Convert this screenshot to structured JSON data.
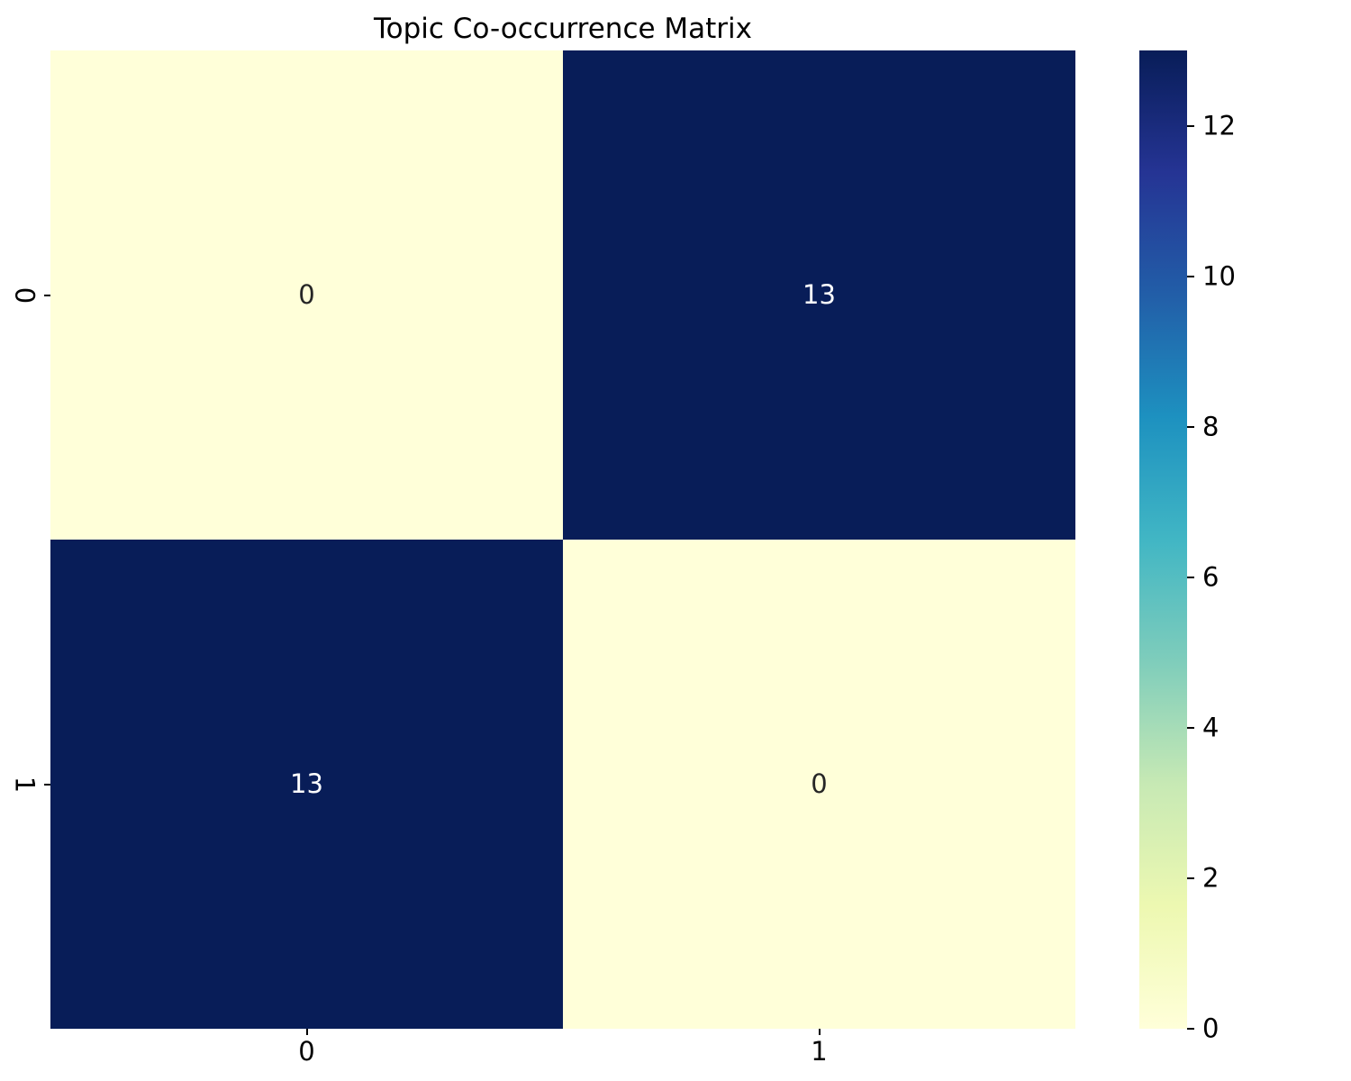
{
  "figure": {
    "background": "#ffffff"
  },
  "chart_data": {
    "type": "heatmap",
    "title": "Topic Co-occurrence Matrix",
    "x_tick_labels": [
      "0",
      "1"
    ],
    "y_tick_labels": [
      "0",
      "1"
    ],
    "values": [
      [
        0,
        13
      ],
      [
        13,
        0
      ]
    ],
    "vmin": 0,
    "vmax": 13,
    "colormap_name": "YlGnBu",
    "colormap_stops": [
      "#ffffd9",
      "#edf8b1",
      "#c7e9b4",
      "#7fcdbb",
      "#41b6c4",
      "#1d91c0",
      "#225ea8",
      "#253494",
      "#081d58"
    ],
    "colorbar_tick_values": [
      0,
      2,
      4,
      6,
      8,
      10,
      12
    ],
    "annotation_color_dark": "#262626",
    "annotation_color_light": "#ffffff",
    "legend_position": "right-colorbar",
    "grid": false,
    "xlabel": "",
    "ylabel": ""
  }
}
